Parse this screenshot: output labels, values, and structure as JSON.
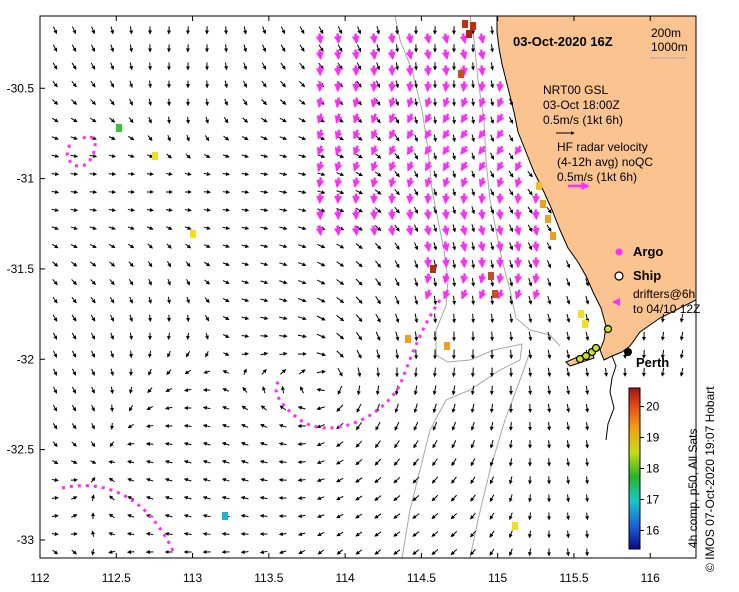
{
  "title": "03-Oct-2020 16Z",
  "depth_legend": {
    "line1": "200m",
    "line2": "1000m"
  },
  "nrt_label": {
    "line1": "NRT00 GSL",
    "line2": "03-Oct 18:00Z",
    "line3": "0.5m/s (1kt 6h)"
  },
  "hf_label": {
    "line1": "HF radar velocity",
    "line2": "(4-12h avg) noQC",
    "line3": "0.5m/s (1kt 6h)"
  },
  "argo_label": "Argo",
  "ship_label": "Ship",
  "drifters_label": {
    "line1": "drifters@6h",
    "line2": "to 04/10 12Z"
  },
  "city_label": "Perth",
  "colorbar": {
    "ticks": [
      "20",
      "19",
      "18",
      "17",
      "16"
    ],
    "label": "4h comp, p50, All Sats",
    "min": 15.4,
    "max": 20.6
  },
  "credit": "© IMOS 07-Oct-2020 19:07 Hobart",
  "axes": {
    "x_ticks": [
      "112",
      "112.5",
      "113",
      "113.5",
      "114",
      "114.5",
      "115",
      "115.5",
      "116"
    ],
    "y_ticks": [
      "-30.5",
      "-31",
      "-31.5",
      "-32",
      "-32.5",
      "-33"
    ],
    "lon_range": [
      112,
      116.3
    ],
    "lat_range": [
      -33.1,
      -30.1
    ]
  },
  "colors": {
    "land": "#fbc38f",
    "hf_arrow": "#ff2bff",
    "nrt_arrow": "#000000",
    "isobath": "#a8a8a8",
    "drifter": "#ff2bff"
  }
}
